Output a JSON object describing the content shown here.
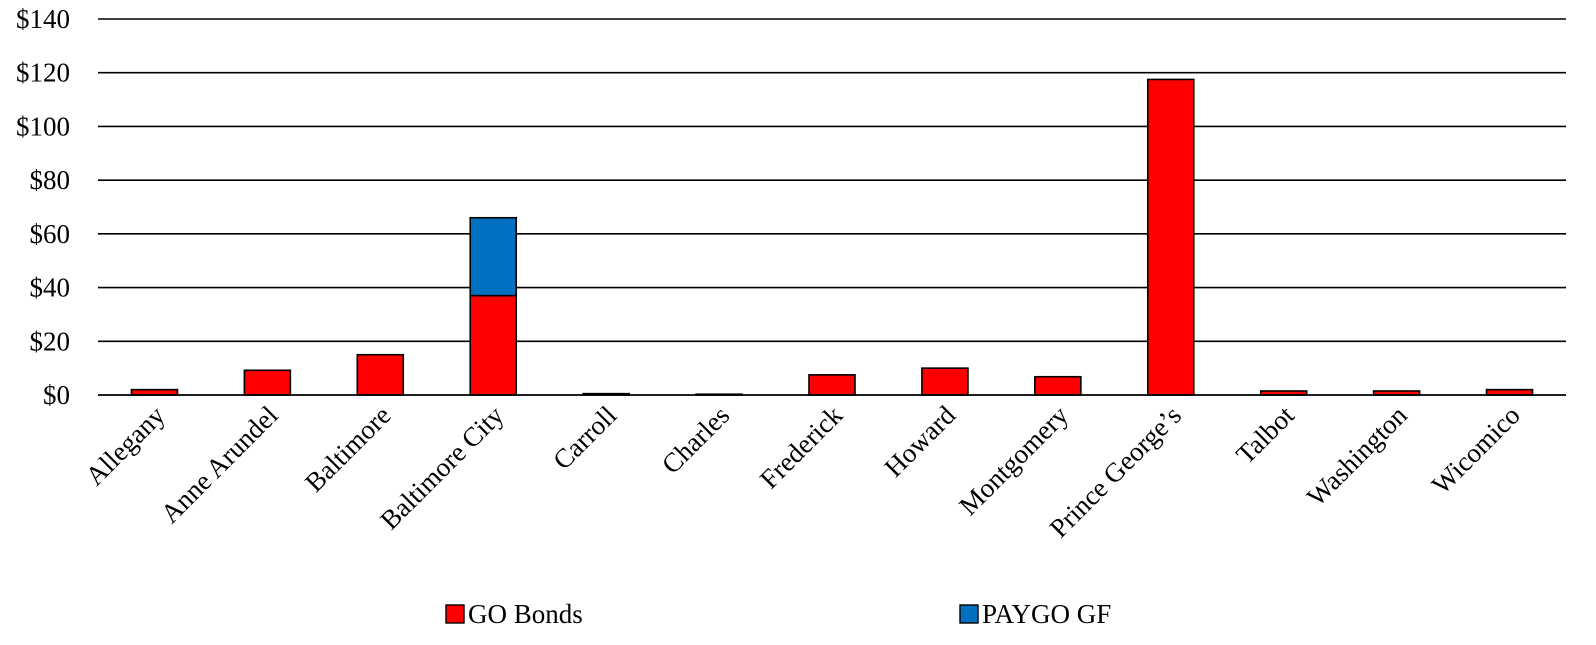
{
  "chart_data": {
    "type": "bar",
    "stacked": true,
    "categories": [
      "Allegany",
      "Anne Arundel",
      "Baltimore",
      "Baltimore City",
      "Carroll",
      "Charles",
      "Frederick",
      "Howard",
      "Montgomery",
      "Prince George’s",
      "Talbot",
      "Washington",
      "Wicomico"
    ],
    "series": [
      {
        "name": "GO Bonds",
        "color": "#ff0000",
        "values": [
          2,
          9.2,
          15,
          37,
          0.5,
          0.3,
          7.5,
          10,
          6.8,
          117.5,
          1.5,
          1.5,
          2
        ]
      },
      {
        "name": "PAYGO GF",
        "color": "#0070c0",
        "values": [
          0,
          0,
          0,
          29,
          0,
          0,
          0,
          0,
          0,
          0,
          0,
          0,
          0
        ]
      }
    ],
    "yticks": [
      "$0",
      "$20",
      "$40",
      "$60",
      "$80",
      "$100",
      "$120",
      "$140"
    ],
    "ylim": [
      0,
      140
    ],
    "grid": true,
    "legend_position": "bottom"
  }
}
